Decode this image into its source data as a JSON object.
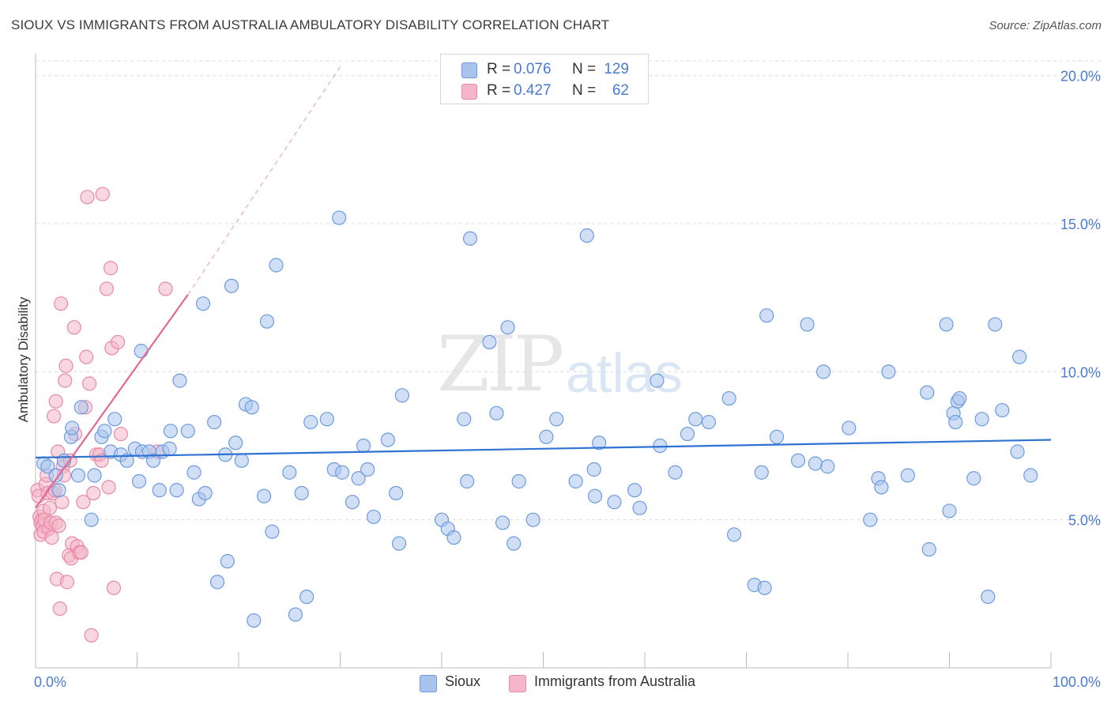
{
  "title": "SIOUX VS IMMIGRANTS FROM AUSTRALIA AMBULATORY DISABILITY CORRELATION CHART",
  "source": "Source: ZipAtlas.com",
  "watermark": {
    "part1": "ZIP",
    "part2": "atlas"
  },
  "legend": {
    "rows": [
      {
        "r_label": "R =",
        "r_value": "0.076",
        "n_label": "N =",
        "n_value": "129",
        "color": "#a9c4ec"
      },
      {
        "r_label": "R =",
        "r_value": "0.427",
        "n_label": "N =",
        "n_value": "62",
        "color": "#f4b6c8"
      }
    ]
  },
  "bottom_legend": [
    {
      "label": "Sioux",
      "color": "#a9c4ec"
    },
    {
      "label": "Immigrants from Australia",
      "color": "#f4b6c8"
    }
  ],
  "colors": {
    "blue_fill": "#a9c4ec",
    "blue_stroke": "#6b9be0",
    "blue_line": "#2f72d1",
    "pink_fill": "#f4b6c8",
    "pink_stroke": "#e889a6",
    "pink_line": "#e2698f",
    "grid": "#dddddd"
  },
  "chart_data": {
    "type": "scatter",
    "title": "SIOUX VS IMMIGRANTS FROM AUSTRALIA AMBULATORY DISABILITY CORRELATION CHART",
    "xlabel": "",
    "ylabel": "Ambulatory Disability",
    "xlim": [
      0,
      100
    ],
    "ylim": [
      0,
      20.5
    ],
    "x_tick_labels": [
      "0.0%",
      "100.0%"
    ],
    "y_tick_values": [
      5,
      10,
      15,
      20
    ],
    "y_tick_labels": [
      "5.0%",
      "10.0%",
      "15.0%",
      "20.0%"
    ],
    "grid": true,
    "series": [
      {
        "name": "Sioux",
        "points": [
          [
            0.8,
            6.9
          ],
          [
            1.2,
            6.8
          ],
          [
            2.0,
            6.5
          ],
          [
            2.3,
            6.0
          ],
          [
            2.8,
            7.0
          ],
          [
            3.5,
            7.8
          ],
          [
            3.6,
            8.1
          ],
          [
            4.2,
            6.5
          ],
          [
            4.5,
            8.8
          ],
          [
            5.5,
            5.0
          ],
          [
            5.8,
            6.5
          ],
          [
            6.5,
            7.8
          ],
          [
            6.8,
            8.0
          ],
          [
            7.4,
            7.3
          ],
          [
            7.8,
            8.4
          ],
          [
            8.4,
            7.2
          ],
          [
            9.0,
            7.0
          ],
          [
            9.8,
            7.4
          ],
          [
            10.2,
            6.3
          ],
          [
            10.5,
            7.3
          ],
          [
            10.4,
            10.7
          ],
          [
            11.2,
            7.3
          ],
          [
            11.6,
            7.0
          ],
          [
            12.2,
            6.0
          ],
          [
            12.5,
            7.3
          ],
          [
            13.2,
            7.4
          ],
          [
            13.3,
            8.0
          ],
          [
            13.9,
            6.0
          ],
          [
            14.2,
            9.7
          ],
          [
            15.0,
            8.0
          ],
          [
            15.6,
            6.6
          ],
          [
            16.1,
            5.7
          ],
          [
            16.5,
            12.3
          ],
          [
            16.7,
            5.9
          ],
          [
            17.6,
            8.3
          ],
          [
            17.9,
            2.9
          ],
          [
            18.7,
            7.2
          ],
          [
            18.9,
            3.6
          ],
          [
            19.3,
            12.9
          ],
          [
            19.7,
            7.6
          ],
          [
            20.3,
            7.0
          ],
          [
            20.7,
            8.9
          ],
          [
            21.3,
            8.8
          ],
          [
            21.5,
            1.6
          ],
          [
            22.5,
            5.8
          ],
          [
            22.8,
            11.7
          ],
          [
            23.3,
            4.6
          ],
          [
            23.7,
            13.6
          ],
          [
            25.0,
            6.6
          ],
          [
            25.6,
            1.8
          ],
          [
            26.2,
            5.9
          ],
          [
            26.7,
            2.4
          ],
          [
            27.1,
            8.3
          ],
          [
            28.7,
            8.4
          ],
          [
            29.4,
            6.7
          ],
          [
            29.9,
            15.2
          ],
          [
            30.2,
            6.6
          ],
          [
            31.2,
            5.6
          ],
          [
            31.8,
            6.4
          ],
          [
            32.3,
            7.5
          ],
          [
            32.7,
            6.7
          ],
          [
            33.3,
            5.1
          ],
          [
            34.7,
            7.7
          ],
          [
            35.5,
            5.9
          ],
          [
            35.8,
            4.2
          ],
          [
            36.1,
            9.2
          ],
          [
            40.0,
            5.0
          ],
          [
            40.6,
            4.7
          ],
          [
            41.2,
            4.4
          ],
          [
            42.2,
            8.4
          ],
          [
            42.5,
            6.3
          ],
          [
            42.8,
            14.5
          ],
          [
            44.7,
            11.0
          ],
          [
            45.4,
            8.6
          ],
          [
            46.0,
            4.9
          ],
          [
            46.5,
            11.5
          ],
          [
            47.1,
            4.2
          ],
          [
            47.6,
            6.3
          ],
          [
            49.0,
            5.0
          ],
          [
            50.3,
            7.8
          ],
          [
            51.3,
            8.4
          ],
          [
            53.2,
            6.3
          ],
          [
            54.3,
            14.6
          ],
          [
            55.0,
            6.7
          ],
          [
            55.5,
            7.6
          ],
          [
            55.1,
            5.8
          ],
          [
            57.0,
            5.6
          ],
          [
            59.0,
            6.0
          ],
          [
            59.5,
            5.4
          ],
          [
            61.2,
            9.7
          ],
          [
            61.5,
            7.5
          ],
          [
            63.0,
            6.6
          ],
          [
            64.2,
            7.9
          ],
          [
            65.0,
            8.4
          ],
          [
            66.3,
            8.3
          ],
          [
            68.3,
            9.1
          ],
          [
            68.8,
            4.5
          ],
          [
            70.8,
            2.8
          ],
          [
            71.5,
            6.6
          ],
          [
            71.8,
            2.7
          ],
          [
            72.0,
            11.9
          ],
          [
            73.0,
            7.8
          ],
          [
            75.1,
            7.0
          ],
          [
            76.0,
            11.6
          ],
          [
            76.8,
            6.9
          ],
          [
            77.6,
            10.0
          ],
          [
            78.0,
            6.8
          ],
          [
            80.1,
            8.1
          ],
          [
            82.2,
            5.0
          ],
          [
            83.0,
            6.4
          ],
          [
            83.3,
            6.1
          ],
          [
            84.0,
            10.0
          ],
          [
            85.9,
            6.5
          ],
          [
            88.0,
            4.0
          ],
          [
            87.8,
            9.3
          ],
          [
            89.7,
            11.6
          ],
          [
            90.0,
            5.3
          ],
          [
            90.4,
            8.6
          ],
          [
            90.6,
            8.3
          ],
          [
            90.8,
            9.0
          ],
          [
            91.0,
            9.1
          ],
          [
            92.4,
            6.4
          ],
          [
            93.2,
            8.4
          ],
          [
            93.8,
            2.4
          ],
          [
            94.5,
            11.6
          ],
          [
            95.2,
            8.7
          ],
          [
            96.7,
            7.3
          ],
          [
            96.9,
            10.5
          ],
          [
            98.0,
            6.5
          ]
        ]
      },
      {
        "name": "Immigrants from Australia",
        "points": [
          [
            0.2,
            6.0
          ],
          [
            0.3,
            5.8
          ],
          [
            0.4,
            5.1
          ],
          [
            0.5,
            4.9
          ],
          [
            0.5,
            4.5
          ],
          [
            0.6,
            5.0
          ],
          [
            0.7,
            4.8
          ],
          [
            0.8,
            5.3
          ],
          [
            0.8,
            4.6
          ],
          [
            0.9,
            5.0
          ],
          [
            1.0,
            6.2
          ],
          [
            1.1,
            6.5
          ],
          [
            1.2,
            5.9
          ],
          [
            1.3,
            4.7
          ],
          [
            1.5,
            4.9
          ],
          [
            1.6,
            4.4
          ],
          [
            1.7,
            5.9
          ],
          [
            1.8,
            8.5
          ],
          [
            1.9,
            6.0
          ],
          [
            2.0,
            4.9
          ],
          [
            2.0,
            9.0
          ],
          [
            2.1,
            3.0
          ],
          [
            2.2,
            7.3
          ],
          [
            2.3,
            4.8
          ],
          [
            2.4,
            2.0
          ],
          [
            2.5,
            12.3
          ],
          [
            2.7,
            6.8
          ],
          [
            2.8,
            6.5
          ],
          [
            2.9,
            9.7
          ],
          [
            3.0,
            10.2
          ],
          [
            3.1,
            2.9
          ],
          [
            3.3,
            3.8
          ],
          [
            3.4,
            7.0
          ],
          [
            3.5,
            3.7
          ],
          [
            3.6,
            4.2
          ],
          [
            3.8,
            11.5
          ],
          [
            3.9,
            7.9
          ],
          [
            4.1,
            4.1
          ],
          [
            4.3,
            3.9
          ],
          [
            4.5,
            3.9
          ],
          [
            4.7,
            5.6
          ],
          [
            4.9,
            8.8
          ],
          [
            5.0,
            10.5
          ],
          [
            5.1,
            15.9
          ],
          [
            5.3,
            9.6
          ],
          [
            5.5,
            1.1
          ],
          [
            5.7,
            5.9
          ],
          [
            6.0,
            7.2
          ],
          [
            6.3,
            7.2
          ],
          [
            6.6,
            16.0
          ],
          [
            7.0,
            12.8
          ],
          [
            7.2,
            6.1
          ],
          [
            7.4,
            13.5
          ],
          [
            7.5,
            10.8
          ],
          [
            7.7,
            2.7
          ],
          [
            8.1,
            11.0
          ],
          [
            8.4,
            7.9
          ],
          [
            12.0,
            7.3
          ],
          [
            12.8,
            12.8
          ],
          [
            6.5,
            7.0
          ],
          [
            2.6,
            5.6
          ],
          [
            1.4,
            5.4
          ]
        ]
      }
    ],
    "trend_lines": [
      {
        "series": "Sioux",
        "x": [
          0,
          100
        ],
        "y": [
          7.1,
          7.7
        ]
      },
      {
        "series": "Immigrants from Australia",
        "x": [
          0,
          15
        ],
        "y": [
          5.4,
          12.6
        ],
        "dashed_extension_to": [
          30,
          20.3
        ]
      }
    ]
  }
}
